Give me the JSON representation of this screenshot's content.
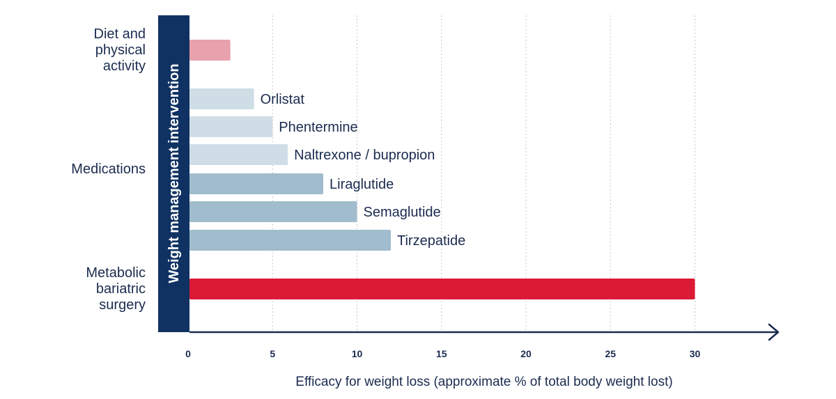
{
  "chart_data": {
    "type": "bar",
    "orientation": "horizontal",
    "xlabel": "Efficacy for weight loss  (approximate % of total body weight lost)",
    "ylabel": "Weight management intervention",
    "xlim": [
      0,
      35
    ],
    "xticks": [
      "0",
      "5",
      "10",
      "15",
      "20",
      "25",
      "30"
    ],
    "grid": "vertical dotted",
    "groups": [
      {
        "label": [
          "Diet and",
          "physical",
          "activity"
        ],
        "bars": [
          0
        ]
      },
      {
        "label": [
          "Medications"
        ],
        "bars": [
          1,
          2,
          3,
          4,
          5,
          6
        ]
      },
      {
        "label": [
          "Metabolic",
          "bariatric",
          "surgery"
        ],
        "bars": [
          7
        ]
      }
    ],
    "bars": [
      {
        "label": "",
        "value": 2.5,
        "color": "#e8a1ad"
      },
      {
        "label": "Orlistat",
        "value": 3.9,
        "color": "#cfdde6"
      },
      {
        "label": "Phentermine",
        "value": 5.0,
        "color": "#cfdde6"
      },
      {
        "label": "Naltrexone / bupropion",
        "value": 5.9,
        "color": "#cfdde6"
      },
      {
        "label": "Liraglutide",
        "value": 8.0,
        "color": "#a0bccd"
      },
      {
        "label": "Semaglutide",
        "value": 10.0,
        "color": "#a0bccd"
      },
      {
        "label": "Tirzepatide",
        "value": 12.0,
        "color": "#a0bccd"
      },
      {
        "label": "",
        "value": 30.0,
        "color": "#dc1a36"
      }
    ],
    "colors": {
      "axis": "#1b2b4f",
      "y_title_band": "#0f3263",
      "grid": "#c7c7c7"
    }
  }
}
